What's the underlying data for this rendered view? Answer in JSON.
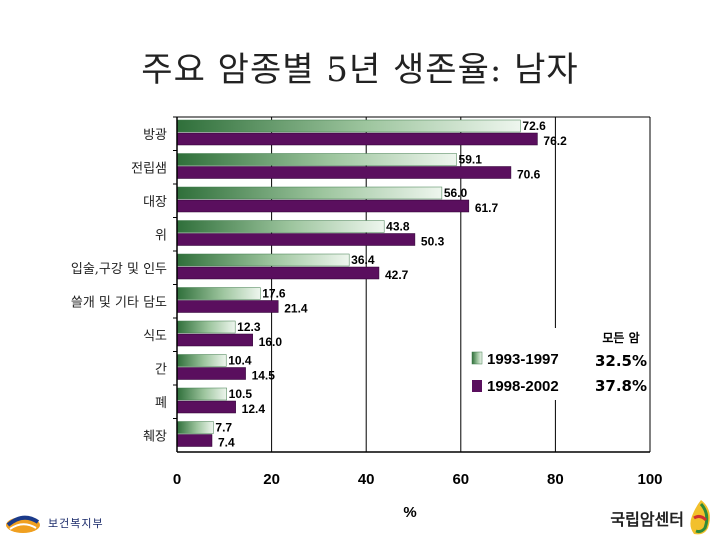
{
  "slide": {
    "title": "주요 암종별 5년 생존율: 남자"
  },
  "chart_data": {
    "type": "bar",
    "orientation": "horizontal",
    "categories": [
      "방광",
      "전립샘",
      "대장",
      "위",
      "입술,구강 및 인두",
      "쓸개 및 기타 담도",
      "식도",
      "간",
      "폐",
      "췌장"
    ],
    "series": [
      {
        "name": "1993-1997",
        "values": [
          72.6,
          59.1,
          56.0,
          43.8,
          36.4,
          17.6,
          12.3,
          10.4,
          10.5,
          7.7
        ],
        "labels": [
          "72.6",
          "59.1",
          "56.0",
          "43.8",
          "36.4",
          "17.6",
          "12.3",
          "10.4",
          "10.5",
          "7.7"
        ]
      },
      {
        "name": "1998-2002",
        "values": [
          76.2,
          70.6,
          61.7,
          50.3,
          42.7,
          21.4,
          16.0,
          14.5,
          12.4,
          7.4
        ],
        "labels": [
          "76.2",
          "70.6",
          "61.7",
          "50.3",
          "42.7",
          "21.4",
          "16.0",
          "14.5",
          "12.4",
          "7.4"
        ]
      }
    ],
    "xlabel": "%",
    "xlim": [
      0,
      100
    ],
    "xticks": [
      "0",
      "20",
      "40",
      "60",
      "80",
      "100"
    ],
    "xtick_values": [
      0,
      20,
      40,
      60,
      80,
      100
    ],
    "grid": "vertical",
    "legend_position": "right",
    "colors": {
      "series1": "#3f7a4a",
      "series1_light": "#e6f1e6",
      "series2": "#5a0f5e",
      "axis": "#000000"
    },
    "summary": {
      "header": "모든 암",
      "values": [
        "32.5%",
        "37.8%"
      ]
    }
  },
  "footer": {
    "ministry": "보건복지부",
    "center": "국립암센터"
  }
}
